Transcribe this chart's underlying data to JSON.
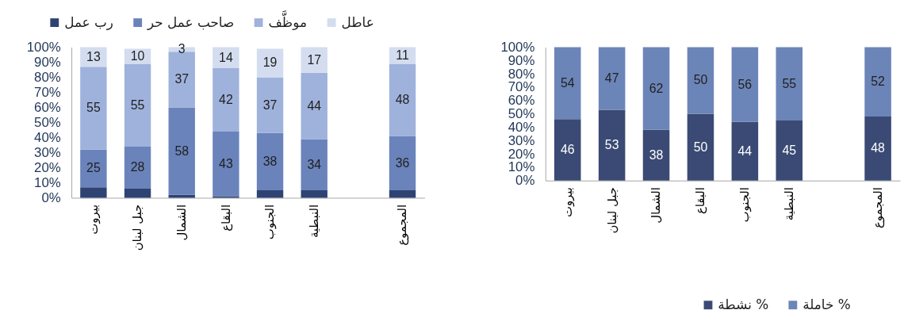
{
  "chart_data": [
    {
      "type": "bar",
      "stacked": true,
      "legend": "top",
      "categories": [
        "بيروت",
        "جبل لبنان",
        "الشمال",
        "البقاع",
        "الجنوب",
        "النبطية",
        null,
        "المجموع"
      ],
      "series": [
        {
          "name": "رب عمل",
          "color": "#2f4373",
          "values": [
            7,
            6,
            2,
            1,
            5,
            5,
            null,
            5
          ]
        },
        {
          "name": "صاحب عمل حر",
          "color": "#6a83bb",
          "values": [
            25,
            28,
            58,
            43,
            38,
            34,
            null,
            36
          ],
          "value_labels": [
            "25",
            "28",
            "58",
            "43",
            "38",
            "34",
            null,
            "36"
          ]
        },
        {
          "name": "موظَّف",
          "color": "#9fb2dc",
          "values": [
            55,
            55,
            37,
            42,
            37,
            44,
            null,
            48
          ],
          "value_labels": [
            "55",
            "55",
            "37",
            "42",
            "37",
            "44",
            null,
            "48"
          ]
        },
        {
          "name": "عاطل",
          "color": "#d3ddef",
          "values": [
            13,
            10,
            3,
            14,
            19,
            17,
            null,
            11
          ],
          "value_labels": [
            "13",
            "10",
            "3",
            "14",
            "19",
            "17",
            null,
            "11"
          ]
        }
      ],
      "ylim": [
        0,
        100
      ],
      "yticks": [
        {
          "value": 0,
          "label": "0%"
        },
        {
          "value": 10,
          "label": "10%"
        },
        {
          "value": 20,
          "label": "20%"
        },
        {
          "value": 30,
          "label": "30%"
        },
        {
          "value": 40,
          "label": "40%"
        },
        {
          "value": 50,
          "label": "50%"
        },
        {
          "value": 60,
          "label": "60%"
        },
        {
          "value": 70,
          "label": "70%"
        },
        {
          "value": 80,
          "label": "80%"
        },
        {
          "value": 90,
          "label": "90%"
        },
        {
          "value": 100,
          "label": "100%"
        }
      ]
    },
    {
      "type": "bar",
      "stacked": true,
      "data_labels": true,
      "legend": "bottom",
      "categories": [
        "بيروت",
        "جبل لبنان",
        "الشمال",
        "البقاع",
        "الجنوب",
        "النبطية",
        null,
        "المجموع"
      ],
      "series": [
        {
          "name": "% نشطة",
          "color": "#3a4a74",
          "values": [
            46,
            53,
            38,
            50,
            44,
            45,
            null,
            48
          ]
        },
        {
          "name": "% خاملة",
          "color": "#6c85b8",
          "values": [
            54,
            47,
            62,
            50,
            56,
            55,
            null,
            52
          ]
        }
      ],
      "ylim": [
        0,
        100
      ],
      "yticks": [
        {
          "value": 0,
          "label": "0%"
        },
        {
          "value": 10,
          "label": "10%"
        },
        {
          "value": 20,
          "label": "20%"
        },
        {
          "value": 30,
          "label": "30%"
        },
        {
          "value": 40,
          "label": "40%"
        },
        {
          "value": 50,
          "label": "50%"
        },
        {
          "value": 60,
          "label": "60%"
        },
        {
          "value": 70,
          "label": "70%"
        },
        {
          "value": 80,
          "label": "80%"
        },
        {
          "value": 90,
          "label": "90%"
        },
        {
          "value": 100,
          "label": "100%"
        }
      ]
    }
  ]
}
